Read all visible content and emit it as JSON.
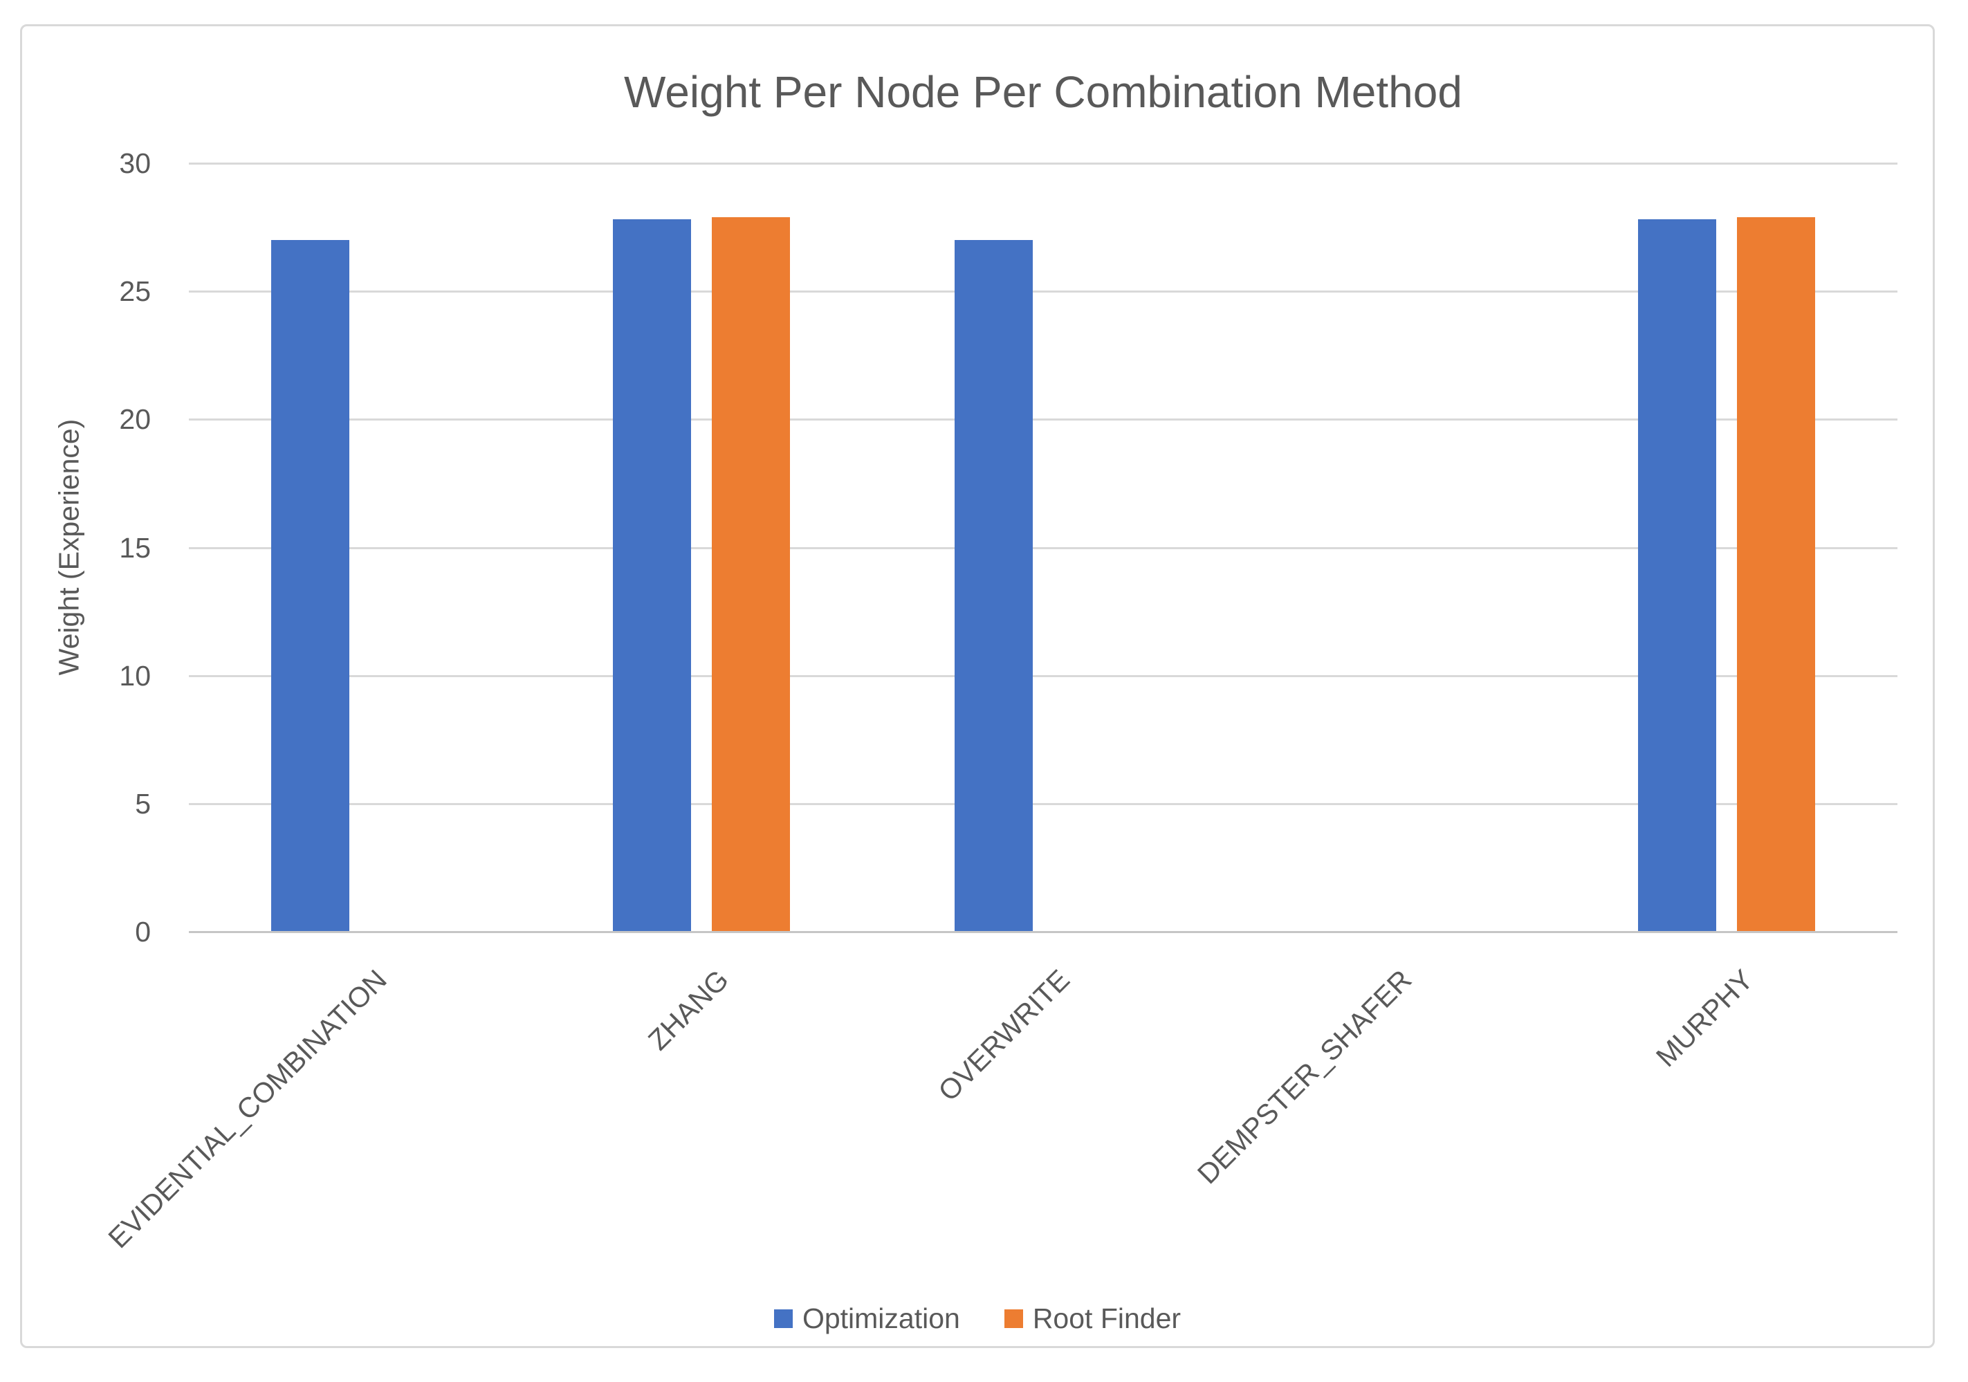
{
  "title": "Weight Per Node Per Combination Method",
  "y_axis": {
    "label": "Weight (Experience)",
    "ticks": [
      0,
      5,
      10,
      15,
      20,
      25,
      30
    ]
  },
  "colors": {
    "optimization": "#4472C4",
    "root_finder": "#ED7D31",
    "gridline": "#D9D9D9",
    "axis_line": "#C6C6C6",
    "text": "#595959"
  },
  "chart_data": {
    "type": "bar",
    "title": "Weight Per Node Per Combination Method",
    "categories": [
      "EVIDENTIAL_COMBINATION",
      "ZHANG",
      "OVERWRITE",
      "DEMPSTER_SHAFER",
      "MURPHY"
    ],
    "series": [
      {
        "name": "Optimization",
        "color": "#4472C4",
        "values": [
          27.0,
          27.8,
          27.0,
          0,
          27.8
        ]
      },
      {
        "name": "Root Finder",
        "color": "#ED7D31",
        "values": [
          0,
          27.9,
          0,
          0,
          27.9
        ]
      }
    ],
    "xlabel": "",
    "ylabel": "Weight (Experience)",
    "ylim": [
      0,
      30
    ],
    "yticks": [
      0,
      5,
      10,
      15,
      20,
      25,
      30
    ],
    "grid": true,
    "legend_position": "bottom",
    "category_label_rotation_deg": 45
  }
}
